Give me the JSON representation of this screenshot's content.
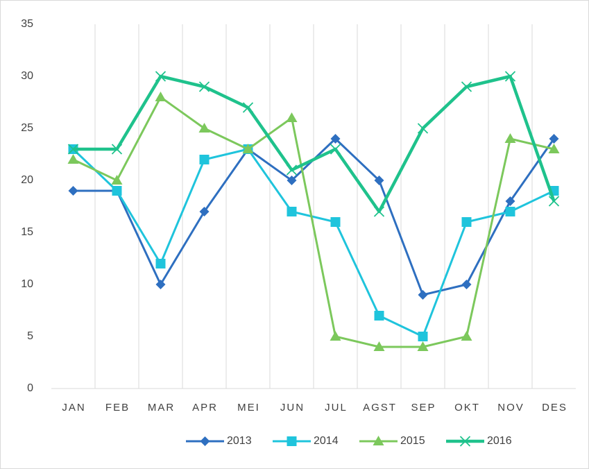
{
  "chart_data": {
    "type": "line",
    "categories": [
      "JAN",
      "FEB",
      "MAR",
      "APR",
      "MEI",
      "JUN",
      "JUL",
      "AGST",
      "SEP",
      "OKT",
      "NOV",
      "DES"
    ],
    "series": [
      {
        "name": "2013",
        "color": "#2e6fc0",
        "marker": "diamond",
        "values": [
          19,
          19,
          10,
          17,
          23,
          20,
          24,
          20,
          9,
          10,
          18,
          24
        ]
      },
      {
        "name": "2014",
        "color": "#1fc4dc",
        "marker": "square",
        "values": [
          23,
          19,
          12,
          22,
          23,
          17,
          16,
          7,
          5,
          16,
          17,
          19
        ]
      },
      {
        "name": "2015",
        "color": "#7cc85c",
        "marker": "triangle",
        "values": [
          22,
          20,
          28,
          25,
          23,
          26,
          5,
          4,
          4,
          5,
          24,
          23
        ]
      },
      {
        "name": "2016",
        "color": "#1fc28c",
        "marker": "x",
        "values": [
          23,
          23,
          30,
          29,
          27,
          21,
          23,
          17,
          25,
          29,
          30,
          18
        ]
      }
    ],
    "ylim": [
      0,
      35
    ],
    "yticks": [
      0,
      5,
      10,
      15,
      20,
      25,
      30,
      35
    ],
    "grid": "vertical",
    "legend": "bottom"
  }
}
